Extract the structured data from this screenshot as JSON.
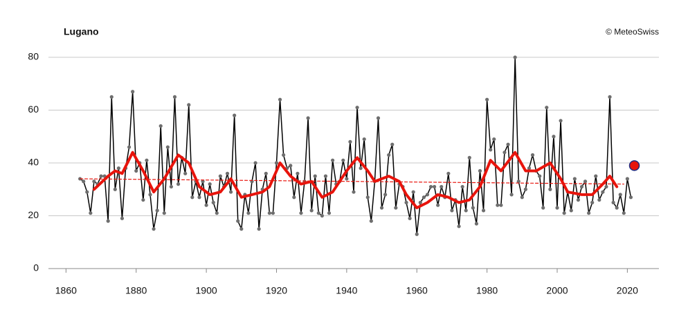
{
  "chart_data": {
    "type": "line",
    "title": "Lugano",
    "credit": "© MeteoSwiss",
    "xlim": [
      1855,
      2029
    ],
    "xticks": [
      1860,
      1880,
      1900,
      1920,
      1940,
      1960,
      1980,
      2000,
      2020
    ],
    "ylim": [
      0,
      80
    ],
    "yticks": [
      0,
      20,
      40,
      60,
      80
    ],
    "grid": true,
    "x": [
      1864,
      1865,
      1866,
      1867,
      1868,
      1869,
      1870,
      1871,
      1872,
      1873,
      1874,
      1875,
      1876,
      1877,
      1878,
      1879,
      1880,
      1881,
      1882,
      1883,
      1884,
      1885,
      1886,
      1887,
      1888,
      1889,
      1890,
      1891,
      1892,
      1893,
      1894,
      1895,
      1896,
      1897,
      1898,
      1899,
      1900,
      1901,
      1902,
      1903,
      1904,
      1905,
      1906,
      1907,
      1908,
      1909,
      1910,
      1911,
      1912,
      1913,
      1914,
      1915,
      1916,
      1917,
      1918,
      1919,
      1920,
      1921,
      1922,
      1923,
      1924,
      1925,
      1926,
      1927,
      1928,
      1929,
      1930,
      1931,
      1932,
      1933,
      1934,
      1935,
      1936,
      1937,
      1938,
      1939,
      1940,
      1941,
      1942,
      1943,
      1944,
      1945,
      1946,
      1947,
      1948,
      1949,
      1950,
      1951,
      1952,
      1953,
      1954,
      1955,
      1956,
      1957,
      1958,
      1959,
      1960,
      1961,
      1962,
      1963,
      1964,
      1965,
      1966,
      1967,
      1968,
      1969,
      1970,
      1971,
      1972,
      1973,
      1974,
      1975,
      1976,
      1977,
      1978,
      1979,
      1980,
      1981,
      1982,
      1983,
      1984,
      1985,
      1986,
      1987,
      1988,
      1989,
      1990,
      1991,
      1992,
      1993,
      1994,
      1995,
      1996,
      1997,
      1998,
      1999,
      2000,
      2001,
      2002,
      2003,
      2004,
      2005,
      2006,
      2007,
      2008,
      2009,
      2010,
      2011,
      2012,
      2013,
      2014,
      2015,
      2016,
      2017,
      2018,
      2019,
      2020,
      2021
    ],
    "series": [
      {
        "color": "#000000",
        "marker_color": "#6e6e6e",
        "values": [
          34,
          33,
          29,
          21,
          33,
          32,
          35,
          35,
          18,
          65,
          30,
          38,
          19,
          38,
          46,
          67,
          37,
          40,
          26,
          41,
          28,
          15,
          22,
          54,
          21,
          46,
          31,
          65,
          32,
          42,
          36,
          62,
          27,
          33,
          27,
          33,
          24,
          32,
          25,
          21,
          35,
          31,
          36,
          29,
          58,
          18,
          15,
          28,
          21,
          33,
          40,
          15,
          30,
          36,
          21,
          21,
          40,
          64,
          43,
          38,
          39,
          27,
          36,
          21,
          33,
          57,
          22,
          35,
          21,
          20,
          35,
          21,
          41,
          32,
          33,
          41,
          34,
          48,
          29,
          61,
          38,
          49,
          27,
          18,
          33,
          57,
          23,
          28,
          43,
          47,
          23,
          32,
          31,
          25,
          19,
          29,
          13,
          25,
          27,
          28,
          31,
          31,
          24,
          31,
          27,
          36,
          22,
          26,
          16,
          31,
          22,
          42,
          23,
          17,
          37,
          22,
          64,
          45,
          49,
          24,
          24,
          44,
          47,
          28,
          80,
          33,
          27,
          30,
          38,
          43,
          37,
          35,
          23,
          61,
          30,
          50,
          23,
          56,
          21,
          29,
          22,
          34,
          26,
          31,
          33,
          21,
          25,
          35,
          26,
          29,
          31,
          65,
          25,
          23,
          28,
          21,
          34,
          27
        ]
      },
      {
        "color": "#e8140c",
        "x": [
          1868,
          1872,
          1874,
          1876,
          1879,
          1882,
          1885,
          1888,
          1892,
          1895,
          1898,
          1901,
          1904,
          1907,
          1910,
          1913,
          1916,
          1918,
          1921,
          1924,
          1927,
          1930,
          1933,
          1936,
          1940,
          1943,
          1946,
          1948,
          1952,
          1955,
          1957,
          1960,
          1963,
          1966,
          1969,
          1972,
          1975,
          1978,
          1981,
          1984,
          1988,
          1991,
          1994,
          1998,
          2001,
          2003,
          2007,
          2010,
          2013,
          2015,
          2017
        ],
        "values": [
          30,
          35,
          37,
          36,
          44,
          37,
          29,
          34,
          43,
          40,
          31,
          28,
          29,
          34,
          27,
          28,
          29,
          31,
          40,
          35,
          32,
          33,
          27,
          29,
          37,
          42,
          37,
          33,
          35,
          33,
          28,
          23,
          25,
          28,
          27,
          25,
          26,
          31,
          41,
          37,
          44,
          37,
          37,
          40,
          34,
          29,
          28,
          28,
          32,
          35,
          31
        ]
      },
      {
        "color": "#e8140c",
        "dashed": true,
        "x": [
          1864,
          2019
        ],
        "values": [
          34,
          32
        ]
      },
      {
        "color": "#e8140c",
        "stroke": "#1f2a80",
        "x": [
          2022
        ],
        "values": [
          39
        ]
      }
    ]
  }
}
